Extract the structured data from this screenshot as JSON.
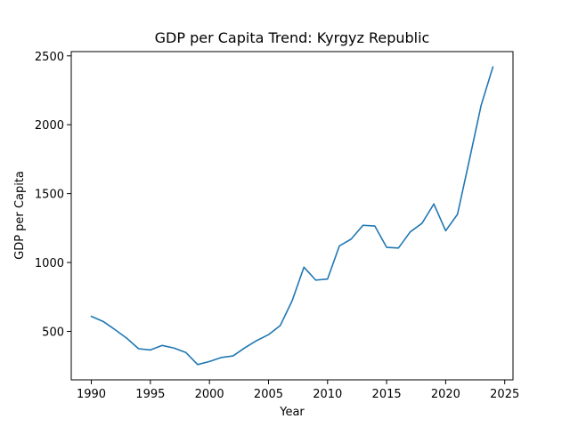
{
  "chart_data": {
    "type": "line",
    "title": "GDP per Capita Trend: Kyrgyz Republic",
    "xlabel": "Year",
    "ylabel": "GDP per Capita",
    "xlim": [
      1988.3,
      2025.7
    ],
    "ylim": [
      148,
      2531
    ],
    "x_ticks": [
      1990,
      1995,
      2000,
      2005,
      2010,
      2015,
      2020,
      2025
    ],
    "y_ticks": [
      500,
      1000,
      1500,
      2000,
      2500
    ],
    "grid": false,
    "legend": "none",
    "line_color": "#1f77b4",
    "series": [
      {
        "x": [
          1990,
          1991,
          1992,
          1993,
          1994,
          1995,
          1996,
          1997,
          1998,
          1999,
          2000,
          2001,
          2002,
          2003,
          2004,
          2005,
          2006,
          2007,
          2008,
          2009,
          2010,
          2011,
          2012,
          2013,
          2014,
          2015,
          2016,
          2017,
          2018,
          2019,
          2020,
          2021,
          2022,
          2023,
          2024
        ],
        "values": [
          609,
          572,
          513,
          450,
          374,
          365,
          398,
          379,
          347,
          259,
          281,
          310,
          322,
          381,
          433,
          476,
          543,
          722,
          966,
          872,
          880,
          1120,
          1170,
          1270,
          1265,
          1110,
          1105,
          1222,
          1285,
          1425,
          1230,
          1350,
          1742,
          2140,
          2420
        ]
      }
    ]
  }
}
